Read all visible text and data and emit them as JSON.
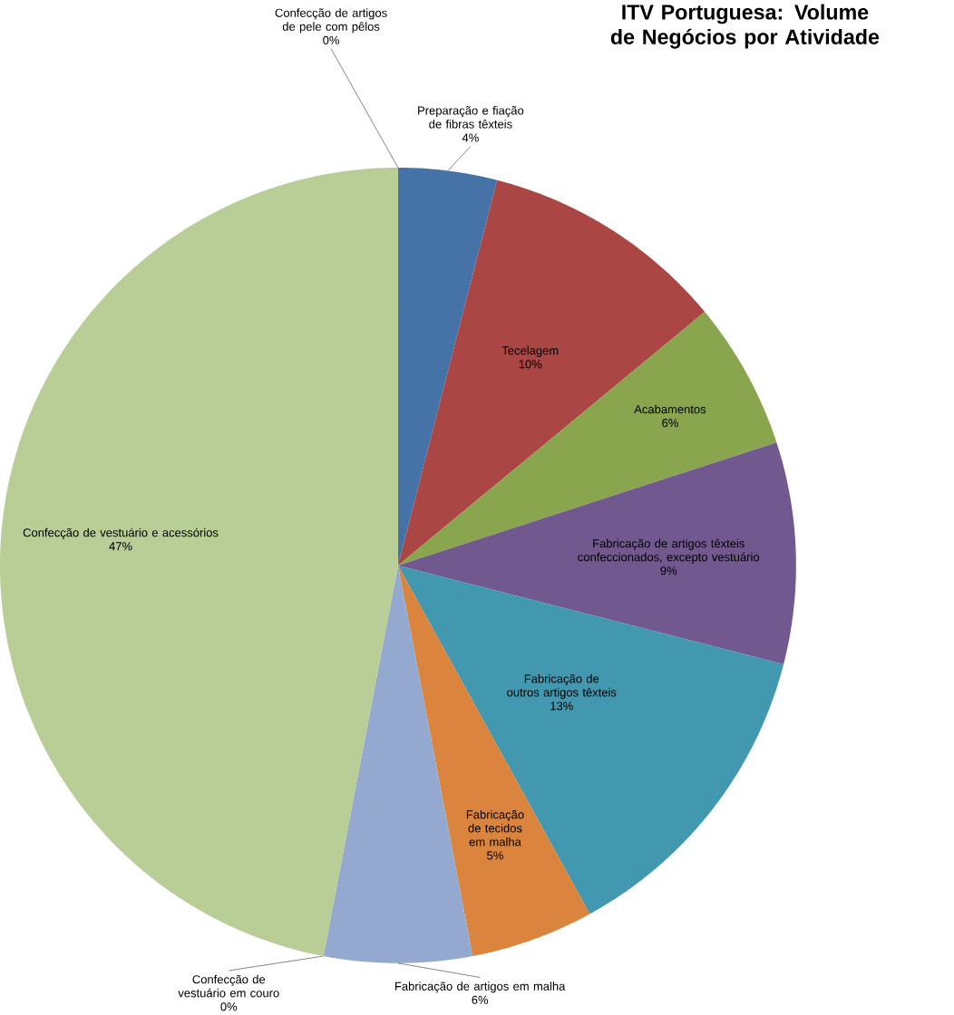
{
  "chart_data": {
    "type": "pie",
    "title": "ITV Portuguesa: Volume de Negócios por Atividade",
    "categories": [
      "Preparação e fiação de fibras têxteis",
      "Tecelagem",
      "Acabamentos",
      "Fabricação de artigos têxteis confeccionados, excepto vestuário",
      "Fabricação de outros artigos têxteis",
      "Fabricação de tecidos em malha",
      "Fabricação de artigos em malha",
      "Confecção de vestuário em couro",
      "Confecção de vestuário e acessórios",
      "Confecção de artigos de pele com pêlos"
    ],
    "values": [
      4,
      10,
      6,
      9,
      13,
      5,
      6,
      0,
      47,
      0
    ],
    "value_labels": [
      "4%",
      "10%",
      "6%",
      "9%",
      "13%",
      "5%",
      "6%",
      "0%",
      "47%",
      "0%"
    ],
    "colors": [
      "#4572a7",
      "#aa4643",
      "#89a54e",
      "#71588f",
      "#4198af",
      "#db843d",
      "#93a9cf",
      "#d19392",
      "#b9cd96",
      "#a99bbd"
    ]
  }
}
